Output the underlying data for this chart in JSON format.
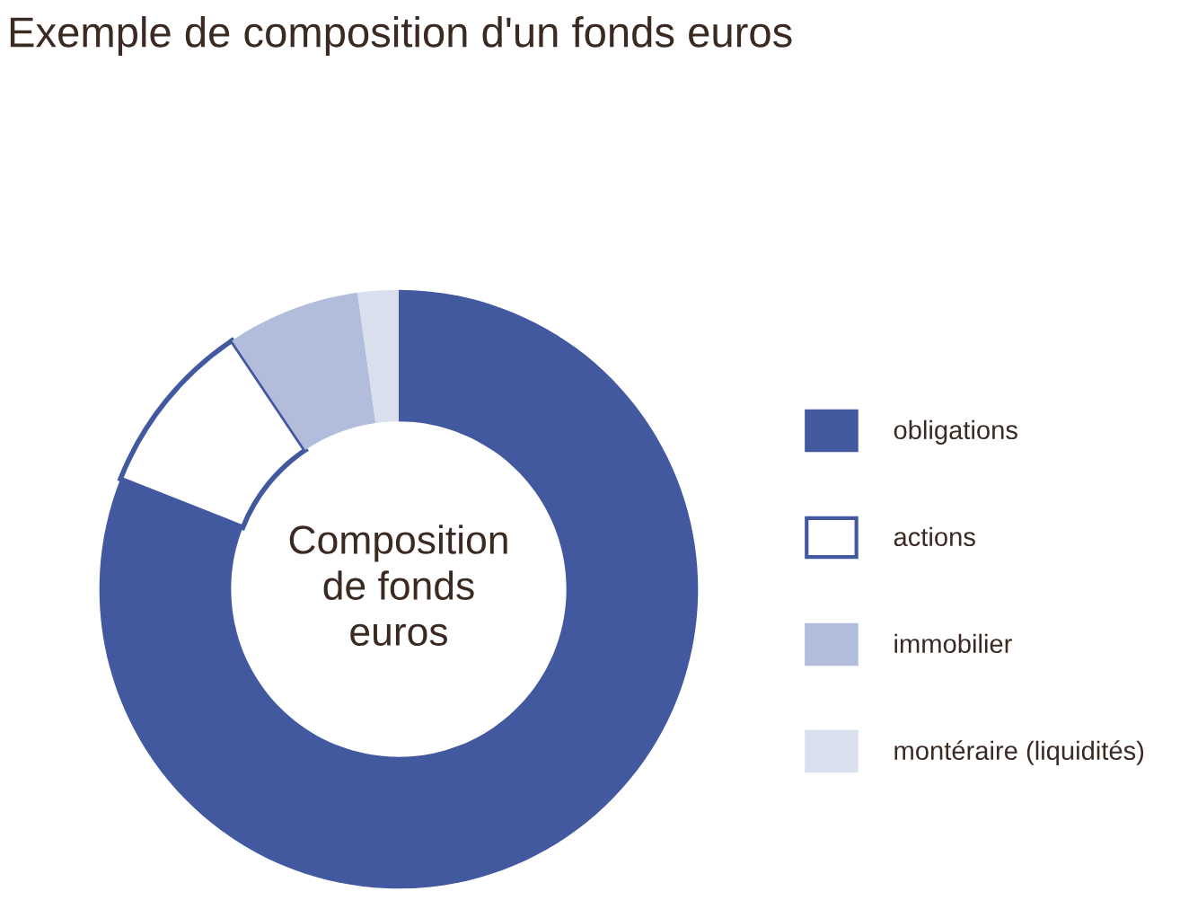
{
  "chart_data": {
    "type": "donut",
    "title": "Exemple de composition d'un fonds euros",
    "categories": [
      "obligations",
      "actions",
      "immobilier",
      "montéraire (liquidités)"
    ],
    "values": [
      81,
      9.6,
      7.2,
      2.2
    ],
    "colors": [
      "#42599f",
      "#ffffff",
      "#b2bcdb",
      "#dadfee"
    ],
    "annotations": [
      "Composition\nde fonds\neuros"
    ],
    "legend": "right"
  }
}
